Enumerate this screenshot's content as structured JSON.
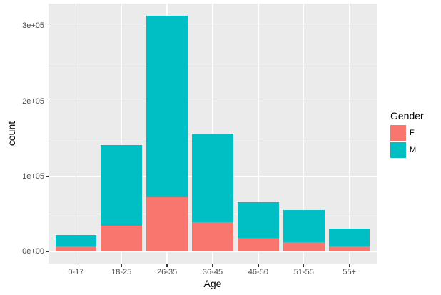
{
  "chart_data": {
    "type": "bar",
    "stacked": true,
    "xlabel": "Age",
    "ylabel": "count",
    "categories": [
      "0-17",
      "18-25",
      "26-35",
      "36-45",
      "46-50",
      "51-55",
      "55+"
    ],
    "series": [
      {
        "name": "F",
        "color": "#F8766D",
        "values": [
          7000,
          35000,
          73000,
          39000,
          18000,
          13000,
          7500
        ]
      },
      {
        "name": "M",
        "color": "#00BFC4",
        "values": [
          15000,
          107000,
          241000,
          118000,
          47500,
          42500,
          23500
        ]
      }
    ],
    "totals": [
      22000,
      142000,
      314000,
      157000,
      65500,
      55500,
      31000
    ],
    "ylim": [
      0,
      330000
    ],
    "yticks": {
      "values": [
        0,
        100000,
        200000,
        300000
      ],
      "labels": [
        "0e+00",
        "1e+05",
        "2e+05",
        "3e+05"
      ]
    },
    "yminor": [
      50000,
      150000,
      250000
    ],
    "grid": true,
    "legend": {
      "title": "Gender",
      "position": "right",
      "entries": [
        "F",
        "M"
      ]
    }
  },
  "theme": {
    "panel_bg": "#EBEBEB",
    "grid_color": "#FFFFFF",
    "tick_label_color": "#4D4D4D",
    "axis_title_color": "#000000",
    "tick_mark_color": "#333333",
    "legend_text_color": "#000000"
  }
}
